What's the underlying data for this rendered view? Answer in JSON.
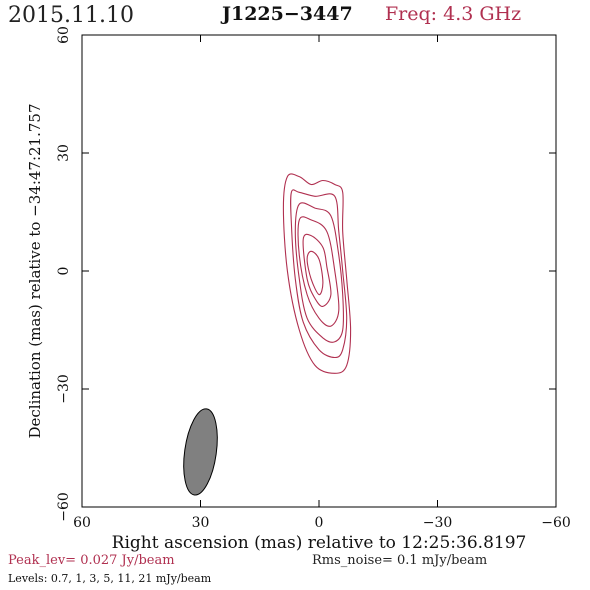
{
  "header": {
    "date": "2015.11.10",
    "source": "J1225−3447",
    "freq": "Freq: 4.3 GHz"
  },
  "footer": {
    "peak": "Peak_lev=  0.027 Jy/beam",
    "rms": "Rms_noise=   0.1 mJy/beam",
    "levels": "Levels: 0.7,    1,    3,    5,   11,   21 mJy/beam"
  },
  "colors": {
    "contour": "#b03050",
    "beam_fill": "#808080",
    "axis": "#000000"
  },
  "chart_data": {
    "type": "contour",
    "xlabel": "Right ascension (mas) relative to 12:25:36.8197",
    "ylabel": "Declination (mas) relative to −34:47:21.757",
    "xlim": [
      60,
      -60
    ],
    "ylim": [
      -60,
      60
    ],
    "xticks": [
      60,
      30,
      0,
      -30,
      -60
    ],
    "yticks": [
      -60,
      -30,
      0,
      30,
      60
    ],
    "xtick_labels": [
      "60",
      "30",
      "0",
      "−30",
      "−60"
    ],
    "ytick_labels": [
      "−60",
      "−30",
      "0",
      "30",
      "60"
    ],
    "levels_mJy": [
      0.7,
      1,
      3,
      5,
      11,
      21
    ],
    "contours": [
      [
        [
          -4,
          22
        ],
        [
          -1,
          23
        ],
        [
          2,
          22
        ],
        [
          5,
          24
        ],
        [
          8,
          24
        ],
        [
          9,
          16
        ],
        [
          8,
          0
        ],
        [
          5,
          -15
        ],
        [
          1,
          -24
        ],
        [
          -4,
          -26
        ],
        [
          -7,
          -24
        ],
        [
          -8,
          -15
        ],
        [
          -7,
          -2
        ],
        [
          -6,
          10
        ],
        [
          -6,
          20
        ]
      ],
      [
        [
          -4,
          19
        ],
        [
          1,
          19
        ],
        [
          5,
          20
        ],
        [
          7,
          20
        ],
        [
          7,
          12
        ],
        [
          6,
          -2
        ],
        [
          4,
          -13
        ],
        [
          0,
          -20
        ],
        [
          -4,
          -22
        ],
        [
          -6,
          -20
        ],
        [
          -7,
          -12
        ],
        [
          -6,
          0
        ],
        [
          -5,
          10
        ]
      ],
      [
        [
          -3,
          14
        ],
        [
          1,
          16
        ],
        [
          5,
          17
        ],
        [
          6,
          10
        ],
        [
          5,
          -2
        ],
        [
          3,
          -12
        ],
        [
          -1,
          -17
        ],
        [
          -4,
          -18
        ],
        [
          -6,
          -15
        ],
        [
          -6,
          -6
        ],
        [
          -5,
          4
        ]
      ],
      [
        [
          -2,
          10
        ],
        [
          2,
          13
        ],
        [
          5,
          13
        ],
        [
          5,
          4
        ],
        [
          3,
          -6
        ],
        [
          0,
          -12
        ],
        [
          -3,
          -14
        ],
        [
          -5,
          -10
        ],
        [
          -4,
          0
        ]
      ],
      [
        [
          -1,
          6
        ],
        [
          2,
          9
        ],
        [
          4,
          8
        ],
        [
          3,
          -2
        ],
        [
          1,
          -7
        ],
        [
          -1,
          -9
        ],
        [
          -3,
          -6
        ],
        [
          -2,
          1
        ]
      ],
      [
        [
          0,
          3
        ],
        [
          2,
          5
        ],
        [
          3,
          3
        ],
        [
          2,
          -2
        ],
        [
          0,
          -6
        ],
        [
          -1,
          -3
        ]
      ]
    ],
    "beam": {
      "center": [
        30,
        -46
      ],
      "major": 22,
      "minor": 8,
      "pa_deg": 8
    }
  }
}
